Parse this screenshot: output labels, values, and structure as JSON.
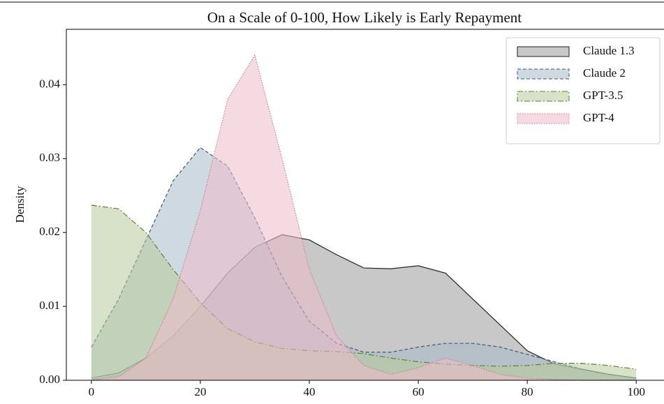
{
  "chart_data": {
    "type": "area",
    "title": "On a Scale of 0-100, How Likely is Early Repayment",
    "ylabel": "Density",
    "x": [
      0,
      5,
      10,
      15,
      20,
      25,
      30,
      35,
      40,
      45,
      50,
      55,
      60,
      65,
      70,
      75,
      80,
      85,
      90,
      95,
      100
    ],
    "series": [
      {
        "name": "Claude 1.3",
        "color": "#9a9a9a",
        "edge": "#222222",
        "dash": "none",
        "values": [
          0.0003,
          0.001,
          0.003,
          0.006,
          0.01,
          0.0145,
          0.018,
          0.0197,
          0.019,
          0.017,
          0.0152,
          0.0151,
          0.0155,
          0.0145,
          0.011,
          0.0075,
          0.004,
          0.0022,
          0.0015,
          0.0008,
          0.0003
        ]
      },
      {
        "name": "Claude 2",
        "color": "#a7b9c8",
        "edge": "#3d5a73",
        "dash": "5,3",
        "values": [
          0.0045,
          0.011,
          0.019,
          0.027,
          0.0315,
          0.029,
          0.022,
          0.014,
          0.008,
          0.005,
          0.0038,
          0.0038,
          0.0045,
          0.005,
          0.005,
          0.0045,
          0.0035,
          0.0025,
          0.0015,
          0.0008,
          0.0003
        ]
      },
      {
        "name": "GPT-3.5",
        "color": "#b7cb9b",
        "edge": "#5f7f3a",
        "dash": "8,3,2,3",
        "values": [
          0.0237,
          0.0232,
          0.02,
          0.015,
          0.0105,
          0.007,
          0.0052,
          0.0043,
          0.004,
          0.0039,
          0.0036,
          0.003,
          0.0025,
          0.0022,
          0.002,
          0.0019,
          0.002,
          0.0023,
          0.0023,
          0.002,
          0.0015
        ]
      },
      {
        "name": "GPT-4",
        "color": "#efbccb",
        "edge": "#c87b90",
        "dash": "1.5,2",
        "values": [
          0,
          0.0005,
          0.003,
          0.011,
          0.023,
          0.038,
          0.044,
          0.03,
          0.015,
          0.006,
          0.002,
          0.0008,
          0.0017,
          0.003,
          0.002,
          0.0008,
          0.0003,
          0.0001,
          0,
          0,
          0
        ]
      }
    ],
    "xlim": [
      -4.6,
      105.1
    ],
    "ylim": [
      0,
      0.0475
    ],
    "xticks": [
      0,
      20,
      40,
      60,
      80,
      100
    ],
    "yticks": [
      {
        "value": 0,
        "label": "0.00"
      },
      0.01,
      0.02,
      0.03,
      0.04
    ],
    "legend": "upper right"
  }
}
